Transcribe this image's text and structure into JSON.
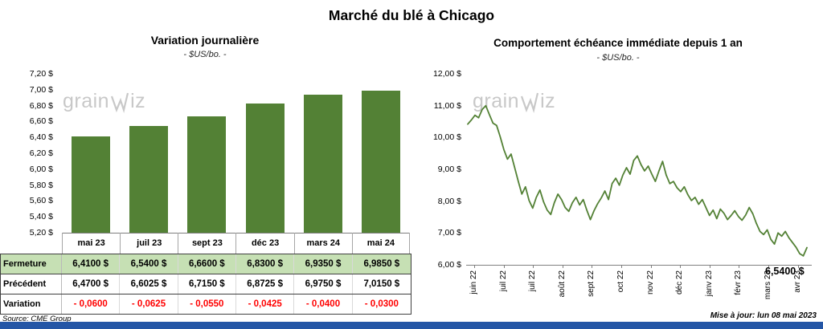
{
  "page": {
    "title": "Marché du blé à Chicago",
    "source": "Source: CME Group",
    "updated": "Mise à jour: lun 08 mai 2023",
    "watermark": {
      "pre": "grain",
      "post": "iz"
    }
  },
  "colors": {
    "green": "#538135",
    "light_green_row": "#c6e0b4",
    "negative_red": "#ff0000",
    "footer_blue": "#2456a6",
    "watermark_gray": "#c8c8c8"
  },
  "table": {
    "rows": [
      {
        "label": "Fermeture",
        "values": [
          "6,4100 $",
          "6,5400 $",
          "6,6600 $",
          "6,8300 $",
          "6,9350 $",
          "6,9850 $"
        ],
        "highlight": true,
        "negative": false
      },
      {
        "label": "Précédent",
        "values": [
          "6,4700 $",
          "6,6025 $",
          "6,7150 $",
          "6,8725 $",
          "6,9750 $",
          "7,0150 $"
        ],
        "highlight": false,
        "negative": false
      },
      {
        "label": "Variation",
        "values": [
          "- 0,0600",
          "- 0,0625",
          "- 0,0550",
          "- 0,0425",
          "- 0,0400",
          "- 0,0300"
        ],
        "highlight": false,
        "negative": true
      }
    ]
  },
  "chart_data": [
    {
      "type": "bar",
      "title": "Variation journalière",
      "subtitle": "- $US/bo. -",
      "categories": [
        "mai 23",
        "juil 23",
        "sept 23",
        "déc 23",
        "mars 24",
        "mai 24"
      ],
      "values": [
        6.41,
        6.54,
        6.66,
        6.83,
        6.935,
        6.985
      ],
      "ylim": [
        5.2,
        7.2
      ],
      "y_ticks": [
        "7,20 $",
        "7,00 $",
        "6,80 $",
        "6,60 $",
        "6,40 $",
        "6,20 $",
        "6,00 $",
        "5,80 $",
        "5,60 $",
        "5,40 $",
        "5,20 $"
      ],
      "bar_color": "#538135",
      "grid": false,
      "legend": false
    },
    {
      "type": "line",
      "title": "Comportement échéance immédiate depuis 1 an",
      "subtitle": "- $US/bo. -",
      "x_ticks": [
        "juin 22",
        "juil 22",
        "juil 22",
        "août 22",
        "sept 22",
        "oct 22",
        "nov 22",
        "déc 22",
        "janv 23",
        "févr 23",
        "mars 23",
        "avr 23"
      ],
      "y_ticks": [
        "12,00 $",
        "11,00 $",
        "10,00 $",
        "9,00 $",
        "8,00 $",
        "7,00 $",
        "6,00 $"
      ],
      "ylim": [
        6,
        12
      ],
      "values": [
        10.42,
        10.55,
        10.7,
        10.62,
        10.88,
        11.0,
        10.72,
        10.45,
        10.38,
        10.02,
        9.62,
        9.32,
        9.48,
        9.05,
        8.62,
        8.22,
        8.45,
        8.02,
        7.78,
        8.12,
        8.35,
        7.98,
        7.72,
        7.58,
        7.95,
        8.22,
        8.05,
        7.8,
        7.68,
        7.95,
        8.12,
        7.88,
        8.05,
        7.72,
        7.42,
        7.7,
        7.92,
        8.1,
        8.32,
        8.05,
        8.55,
        8.72,
        8.5,
        8.82,
        9.05,
        8.85,
        9.28,
        9.42,
        9.15,
        8.95,
        9.1,
        8.85,
        8.62,
        8.95,
        9.25,
        8.82,
        8.55,
        8.62,
        8.42,
        8.3,
        8.45,
        8.2,
        8.02,
        8.12,
        7.9,
        8.05,
        7.8,
        7.55,
        7.72,
        7.45,
        7.75,
        7.62,
        7.42,
        7.55,
        7.7,
        7.52,
        7.4,
        7.56,
        7.8,
        7.6,
        7.3,
        7.05,
        6.95,
        7.1,
        6.8,
        6.65,
        7.0,
        6.9,
        7.05,
        6.85,
        6.7,
        6.55,
        6.35,
        6.28,
        6.54
      ],
      "last_value": 6.54,
      "end_label": "6,5400 $",
      "line_color": "#538135",
      "grid": false,
      "legend": false
    }
  ]
}
